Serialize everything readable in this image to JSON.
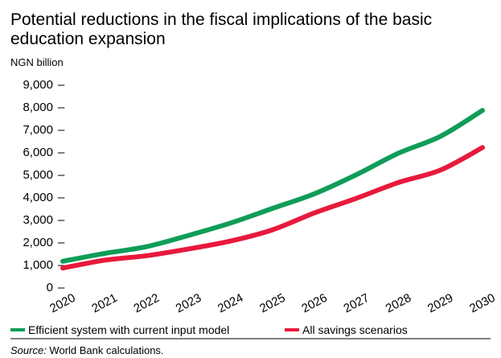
{
  "chart_data": {
    "type": "line",
    "title": "Potential reductions in the fiscal implications of the basic education expansion",
    "title_lines": [
      "Potential reductions in the fiscal implications of the basic",
      "education expansion"
    ],
    "unit_label": "NGN billion",
    "x": [
      "2020",
      "2021",
      "2022",
      "2023",
      "2024",
      "2025",
      "2026",
      "2027",
      "2028",
      "2029",
      "2030"
    ],
    "y_ticks": [
      "0",
      "1,000",
      "2,000",
      "3,000",
      "4,000",
      "5,000",
      "6,000",
      "7,000",
      "8,000",
      "9,000"
    ],
    "ylim": [
      0,
      9000
    ],
    "grid": false,
    "legend_position": "bottom",
    "series": [
      {
        "name": "Efficient system with current input model",
        "color": "#0f9d58",
        "values": [
          1150,
          1500,
          1800,
          2300,
          2850,
          3500,
          4150,
          5000,
          5950,
          6700,
          7850
        ]
      },
      {
        "name": "All savings scenarios",
        "color": "#e8193c",
        "values": [
          850,
          1200,
          1400,
          1700,
          2050,
          2550,
          3300,
          3950,
          4650,
          5200,
          6200
        ]
      }
    ],
    "source_label": "Source:",
    "source_text": " World Bank calculations."
  }
}
